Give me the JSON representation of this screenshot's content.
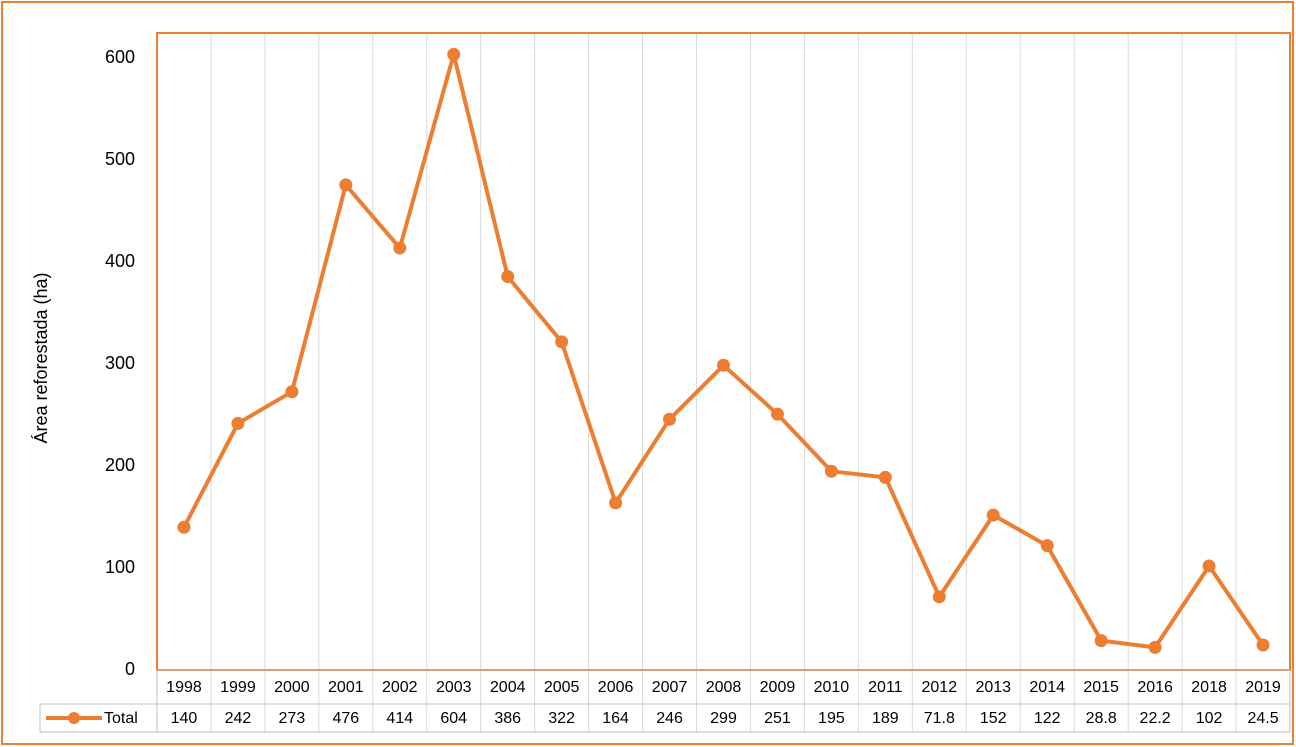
{
  "chart_data": {
    "type": "line",
    "y_label": "Área reforestada (ha)",
    "categories": [
      "1998",
      "1999",
      "2000",
      "2001",
      "2002",
      "2003",
      "2004",
      "2005",
      "2006",
      "2007",
      "2008",
      "2009",
      "2010",
      "2011",
      "2012",
      "2013",
      "2014",
      "2015",
      "2016",
      "2018",
      "2019"
    ],
    "series": [
      {
        "name": "Total",
        "color": "#ED7D31",
        "values": [
          140,
          242,
          273,
          476,
          414,
          604,
          386,
          322,
          164,
          246,
          299,
          251,
          195,
          189,
          71.8,
          152,
          122,
          28.8,
          22.2,
          102,
          24.5
        ]
      }
    ],
    "ylim": [
      0,
      625
    ],
    "yticks": [
      0,
      100,
      200,
      300,
      400,
      500,
      600
    ],
    "grid": true,
    "data_table": true
  }
}
